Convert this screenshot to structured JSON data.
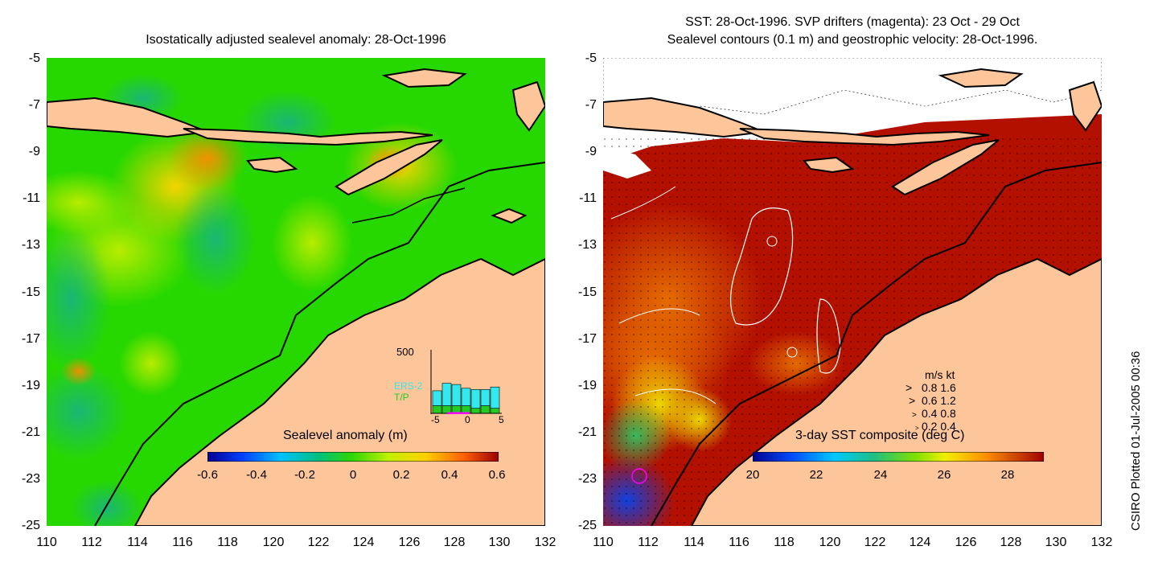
{
  "left_panel": {
    "title": "Isostatically adjusted sealevel anomaly: 28-Oct-1996",
    "colorbar": {
      "title": "Sealevel anomaly (m)",
      "ticks": [
        "-0.6",
        "-0.4",
        "-0.2",
        "0",
        "0.2",
        "0.4",
        "0.6"
      ]
    },
    "inset": {
      "ymax_label": "500",
      "series1": "ERS-2",
      "series2": "T/P",
      "series1_color": "#33e8ee",
      "series2_color": "#22cc22",
      "x_ticks": [
        "-5",
        "0",
        "5"
      ],
      "bars_ers2": [
        120,
        180,
        170,
        140,
        150,
        130,
        170
      ],
      "bars_tp": [
        60,
        60,
        60,
        60,
        40,
        60,
        40
      ]
    }
  },
  "right_panel": {
    "title_line1": "SST: 28-Oct-1996. SVP drifters (magenta): 23 Oct - 29 Oct",
    "title_line2": "Sealevel contours (0.1 m) and geostrophic velocity: 28-Oct-1996.",
    "colorbar": {
      "title": "3-day SST composite (deg C)",
      "ticks": [
        "20",
        "22",
        "24",
        "26",
        "28"
      ]
    },
    "velocity_legend": {
      "header": "m/s  kt",
      "rows": [
        "0.8  1.6",
        "0.6  1.2",
        "0.4  0.8",
        "0.2  0.4"
      ]
    }
  },
  "axes": {
    "y_ticks": [
      "-5",
      "-7",
      "-9",
      "-11",
      "-13",
      "-15",
      "-17",
      "-19",
      "-21",
      "-23",
      "-25"
    ],
    "x_ticks": [
      "110",
      "112",
      "114",
      "116",
      "118",
      "120",
      "122",
      "124",
      "126",
      "128",
      "130",
      "132"
    ],
    "lon_range": [
      110,
      132
    ],
    "lat_range": [
      -25,
      -5
    ]
  },
  "colors": {
    "land": "#fdc59a",
    "sla_base": "#22dd00",
    "sst_hot": "#b31000",
    "sst_warm": "#e06a00",
    "coast": "#000000"
  },
  "credit": "CSIRO Plotted 01-Jul-2005 00:36"
}
